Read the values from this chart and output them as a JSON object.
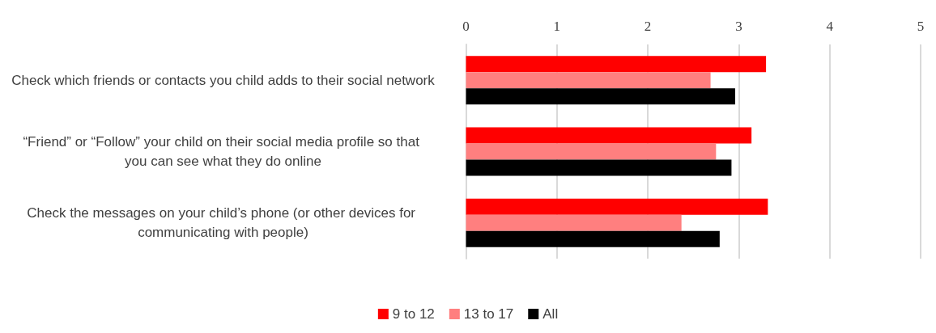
{
  "chart_data": {
    "type": "bar",
    "orientation": "horizontal",
    "categories": [
      "Check which friends or contacts you child adds to their social network",
      "“Friend” or “Follow” your child on their social media profile so that you can see what they do online",
      "Check the messages on your child’s phone (or other devices for communicating with people)"
    ],
    "series": [
      {
        "name": "9 to 12",
        "color": "#ff0000",
        "values": [
          3.3,
          3.14,
          3.32
        ]
      },
      {
        "name": "13 to 17",
        "color": "#ff7f7f",
        "values": [
          2.69,
          2.75,
          2.37
        ]
      },
      {
        "name": "All",
        "color": "#000000",
        "values": [
          2.96,
          2.92,
          2.79
        ]
      }
    ],
    "xlim": [
      0,
      5
    ],
    "xticks": [
      0,
      1,
      2,
      3,
      4,
      5
    ],
    "grid": "x",
    "legend": "bottom"
  }
}
